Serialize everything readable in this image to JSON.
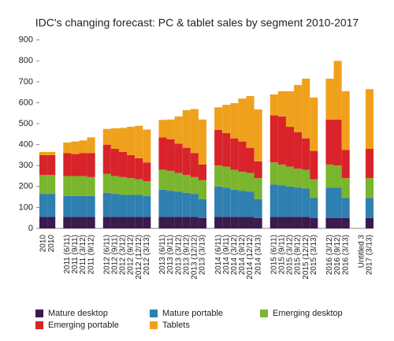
{
  "chart_data": {
    "type": "stacked_bar",
    "title": "IDC's changing forecast: PC & tablet sales by segment 2010-2017",
    "categories": [
      "2010",
      "2010",
      null,
      "2011 (6/11)",
      "2011 (9/11)",
      "2011 (3/12)",
      "2011 (9/12)",
      null,
      "2012 (6/11)",
      "2012 (9/11)",
      "2012 (3/12)",
      "2012 (9/12)",
      "2012 (12/12)",
      "2012 (3/13)",
      null,
      "2013 (6/11)",
      "2013 (9/11)",
      "2013 (3/12)",
      "2013 (9/12)",
      "2013 (12/12)",
      "2013 (3/13)",
      null,
      "2014 (6/11)",
      "2014 (9/11)",
      "2014 (3/12)",
      "2014 (9/12)",
      "2014 (12/12)",
      "2014 (3/13)",
      null,
      "2015 (6/11)",
      "2015 (9/11)",
      "2015 (3/12)",
      "2015 (9/12)",
      "2015 (12/12)",
      "2015 (3/13)",
      null,
      "2016 (3/12)",
      "2016 (9/12)",
      "2016 (3/13)",
      null,
      "Untitled 3",
      "2017 (3/13)"
    ],
    "series": [
      {
        "name": "Mature desktop",
        "color": "#3b1a4e",
        "values": [
          55,
          55,
          null,
          55,
          55,
          55,
          55,
          null,
          55,
          55,
          55,
          55,
          55,
          55,
          null,
          55,
          55,
          55,
          55,
          55,
          50,
          null,
          55,
          55,
          55,
          55,
          55,
          50,
          null,
          55,
          55,
          55,
          55,
          55,
          50,
          null,
          50,
          50,
          50,
          null,
          null,
          50
        ]
      },
      {
        "name": "Mature portable",
        "color": "#2f7fb0",
        "values": [
          110,
          110,
          null,
          100,
          100,
          100,
          100,
          null,
          115,
          110,
          105,
          105,
          105,
          100,
          null,
          130,
          125,
          120,
          115,
          110,
          90,
          null,
          145,
          140,
          130,
          125,
          120,
          90,
          null,
          155,
          150,
          145,
          140,
          135,
          95,
          null,
          145,
          145,
          95,
          null,
          null,
          95
        ]
      },
      {
        "name": "Emerging desktop",
        "color": "#7ab52e",
        "values": [
          90,
          90,
          null,
          95,
          95,
          95,
          90,
          null,
          90,
          85,
          85,
          80,
          75,
          70,
          null,
          95,
          95,
          90,
          85,
          80,
          90,
          null,
          100,
          100,
          95,
          90,
          90,
          100,
          null,
          105,
          100,
          95,
          90,
          90,
          90,
          null,
          110,
          105,
          95,
          null,
          null,
          95
        ]
      },
      {
        "name": "Emerging portable",
        "color": "#d9232a",
        "values": [
          95,
          95,
          null,
          110,
          105,
          110,
          115,
          null,
          140,
          130,
          120,
          110,
          100,
          90,
          null,
          155,
          150,
          140,
          130,
          115,
          75,
          null,
          170,
          160,
          150,
          145,
          120,
          80,
          null,
          225,
          230,
          190,
          175,
          150,
          135,
          null,
          215,
          220,
          135,
          null,
          null,
          140
        ]
      },
      {
        "name": "Tablets",
        "color": "#f0a11c",
        "values": [
          15,
          15,
          null,
          50,
          60,
          60,
          75,
          null,
          75,
          98,
          115,
          135,
          155,
          157,
          null,
          83,
          95,
          130,
          180,
          210,
          215,
          null,
          108,
          135,
          168,
          205,
          247,
          248,
          null,
          100,
          120,
          170,
          225,
          285,
          255,
          null,
          195,
          280,
          280,
          null,
          null,
          285
        ]
      }
    ],
    "ylim": [
      0,
      900
    ],
    "yticks": [
      0,
      100,
      200,
      300,
      400,
      500,
      600,
      700,
      800,
      900
    ],
    "grid": false
  }
}
